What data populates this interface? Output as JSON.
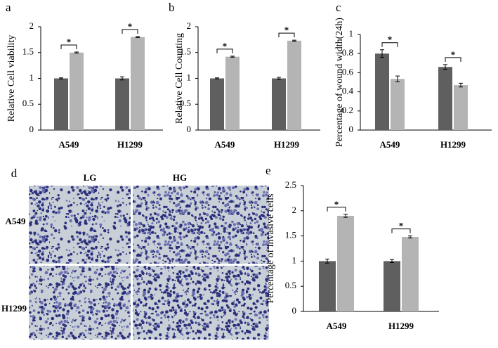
{
  "chart_data": [
    {
      "type": "bar",
      "panel_label": "a",
      "y_label": "Relative Cell viability",
      "categories": [
        "A549",
        "H1299"
      ],
      "series": [
        {
          "color": "#5f5f5f",
          "values": [
            1,
            1
          ],
          "errors": [
            0.01,
            0.03
          ]
        },
        {
          "color": "#b4b4b4",
          "values": [
            1.5,
            1.8
          ],
          "errors": [
            0.01,
            0.01
          ]
        }
      ],
      "annotations": [
        "*",
        "*"
      ],
      "ylim": [
        0,
        2
      ],
      "yticks": [
        0,
        0.5,
        1,
        1.5,
        2
      ]
    },
    {
      "type": "bar",
      "panel_label": "b",
      "y_label": "Relative Cell Counting",
      "categories": [
        "A549",
        "H1299"
      ],
      "series": [
        {
          "color": "#5f5f5f",
          "values": [
            1,
            1
          ],
          "errors": [
            0.01,
            0.02
          ]
        },
        {
          "color": "#b4b4b4",
          "values": [
            1.42,
            1.73
          ],
          "errors": [
            0.01,
            0.01
          ]
        }
      ],
      "annotations": [
        "*",
        "*"
      ],
      "ylim": [
        0,
        2
      ],
      "yticks": [
        0,
        0.5,
        1,
        1.5,
        2
      ]
    },
    {
      "type": "bar",
      "panel_label": "c",
      "y_label": "Percentage of wound width(24h)",
      "categories": [
        "A549",
        "H1299"
      ],
      "series": [
        {
          "color": "#5f5f5f",
          "values": [
            0.8,
            0.66
          ],
          "errors": [
            0.04,
            0.025
          ]
        },
        {
          "color": "#b4b4b4",
          "values": [
            0.535,
            0.47
          ],
          "errors": [
            0.03,
            0.02
          ]
        }
      ],
      "annotations": [
        "*",
        "*"
      ],
      "ylim": [
        0,
        1
      ],
      "yticks": [
        0,
        0.2,
        0.4,
        0.6,
        0.8,
        1
      ]
    },
    {
      "type": "bar",
      "panel_label": "e",
      "y_label": "Percentage of invasive cells",
      "categories": [
        "A549",
        "H1299"
      ],
      "series": [
        {
          "color": "#5f5f5f",
          "values": [
            1,
            1
          ],
          "errors": [
            0.04,
            0.03
          ]
        },
        {
          "color": "#b4b4b4",
          "values": [
            1.9,
            1.48
          ],
          "errors": [
            0.03,
            0.02
          ]
        }
      ],
      "annotations": [
        "*",
        "*"
      ],
      "ylim": [
        0,
        2.5
      ],
      "yticks": [
        0,
        0.5,
        1,
        1.5,
        2,
        2.5
      ]
    }
  ],
  "image_panel": {
    "panel_label": "d",
    "columns": [
      "LG",
      "HG"
    ],
    "rows": [
      "A549",
      "H1299"
    ]
  }
}
